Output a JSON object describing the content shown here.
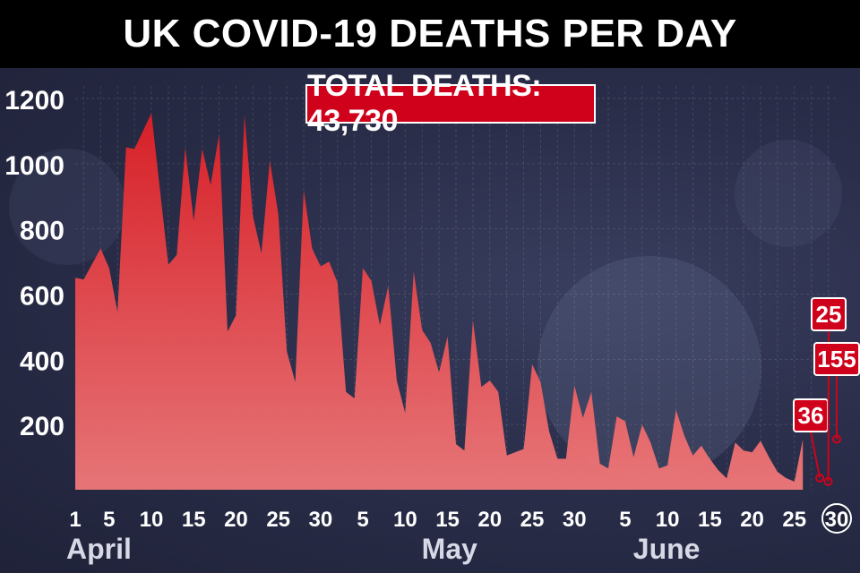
{
  "header": {
    "title": "UK COVID-19 DEATHS PER DAY"
  },
  "badge": {
    "total": "TOTAL DEATHS: 43,730"
  },
  "colors": {
    "area": "#e8282c",
    "badge": "#d0021b",
    "background": "#262a44"
  },
  "chart_data": {
    "type": "area",
    "title": "UK COVID-19 DEATHS PER DAY",
    "ylim": [
      0,
      1200
    ],
    "yticks": [
      200,
      400,
      600,
      800,
      1000,
      1200
    ],
    "xticks": [
      {
        "day": 1,
        "label": "1"
      },
      {
        "day": 5,
        "label": "5"
      },
      {
        "day": 10,
        "label": "10"
      },
      {
        "day": 15,
        "label": "15"
      },
      {
        "day": 20,
        "label": "20"
      },
      {
        "day": 25,
        "label": "25"
      },
      {
        "day": 30,
        "label": "30"
      },
      {
        "day": 35,
        "label": "5"
      },
      {
        "day": 40,
        "label": "10"
      },
      {
        "day": 45,
        "label": "15"
      },
      {
        "day": 50,
        "label": "20"
      },
      {
        "day": 55,
        "label": "25"
      },
      {
        "day": 60,
        "label": "30"
      },
      {
        "day": 66,
        "label": "5"
      },
      {
        "day": 71,
        "label": "10"
      },
      {
        "day": 76,
        "label": "15"
      },
      {
        "day": 81,
        "label": "20"
      },
      {
        "day": 86,
        "label": "25"
      },
      {
        "day": 91,
        "label": "30"
      }
    ],
    "months": [
      {
        "day": 1,
        "label": "April"
      },
      {
        "day": 43,
        "label": "May"
      },
      {
        "day": 68,
        "label": "June"
      }
    ],
    "series": [
      {
        "values": [
          [
            1,
            650
          ],
          [
            2,
            645
          ],
          [
            4,
            740
          ],
          [
            5,
            680
          ],
          [
            6,
            545
          ],
          [
            7,
            1050
          ],
          [
            8,
            1045
          ],
          [
            9,
            1100
          ],
          [
            10,
            1155
          ],
          [
            12,
            690
          ],
          [
            13,
            720
          ],
          [
            14,
            1050
          ],
          [
            15,
            825
          ],
          [
            16,
            1045
          ],
          [
            17,
            935
          ],
          [
            18,
            1090
          ],
          [
            19,
            485
          ],
          [
            20,
            535
          ],
          [
            21,
            1150
          ],
          [
            22,
            840
          ],
          [
            23,
            725
          ],
          [
            24,
            1010
          ],
          [
            25,
            845
          ],
          [
            26,
            425
          ],
          [
            27,
            330
          ],
          [
            28,
            920
          ],
          [
            29,
            740
          ],
          [
            30,
            685
          ],
          [
            31,
            700
          ],
          [
            32,
            635
          ],
          [
            33,
            300
          ],
          [
            34,
            280
          ],
          [
            35,
            680
          ],
          [
            36,
            640
          ],
          [
            37,
            505
          ],
          [
            38,
            625
          ],
          [
            39,
            335
          ],
          [
            40,
            235
          ],
          [
            41,
            670
          ],
          [
            42,
            490
          ],
          [
            43,
            450
          ],
          [
            44,
            360
          ],
          [
            45,
            470
          ],
          [
            46,
            140
          ],
          [
            47,
            120
          ],
          [
            48,
            520
          ],
          [
            49,
            315
          ],
          [
            50,
            335
          ],
          [
            51,
            300
          ],
          [
            52,
            105
          ],
          [
            53,
            115
          ],
          [
            54,
            125
          ],
          [
            55,
            385
          ],
          [
            56,
            330
          ],
          [
            57,
            180
          ],
          [
            58,
            95
          ],
          [
            59,
            95
          ],
          [
            60,
            320
          ],
          [
            61,
            220
          ],
          [
            62,
            300
          ],
          [
            63,
            80
          ],
          [
            64,
            65
          ],
          [
            65,
            225
          ],
          [
            66,
            210
          ],
          [
            67,
            100
          ],
          [
            68,
            200
          ],
          [
            69,
            145
          ],
          [
            70,
            65
          ],
          [
            71,
            75
          ],
          [
            72,
            245
          ],
          [
            73,
            165
          ],
          [
            74,
            105
          ],
          [
            75,
            135
          ],
          [
            76,
            95
          ],
          [
            77,
            60
          ],
          [
            78,
            35
          ],
          [
            79,
            145
          ],
          [
            80,
            120
          ],
          [
            81,
            115
          ],
          [
            82,
            150
          ],
          [
            83,
            100
          ],
          [
            84,
            55
          ],
          [
            85,
            36
          ],
          [
            86,
            25
          ],
          [
            87,
            155
          ]
        ]
      }
    ],
    "annotations": [
      {
        "label": "36",
        "day": 89,
        "value": 36
      },
      {
        "label": "25",
        "day": 90,
        "value": 25
      },
      {
        "label": "155",
        "day": 91,
        "value": 155
      }
    ]
  }
}
